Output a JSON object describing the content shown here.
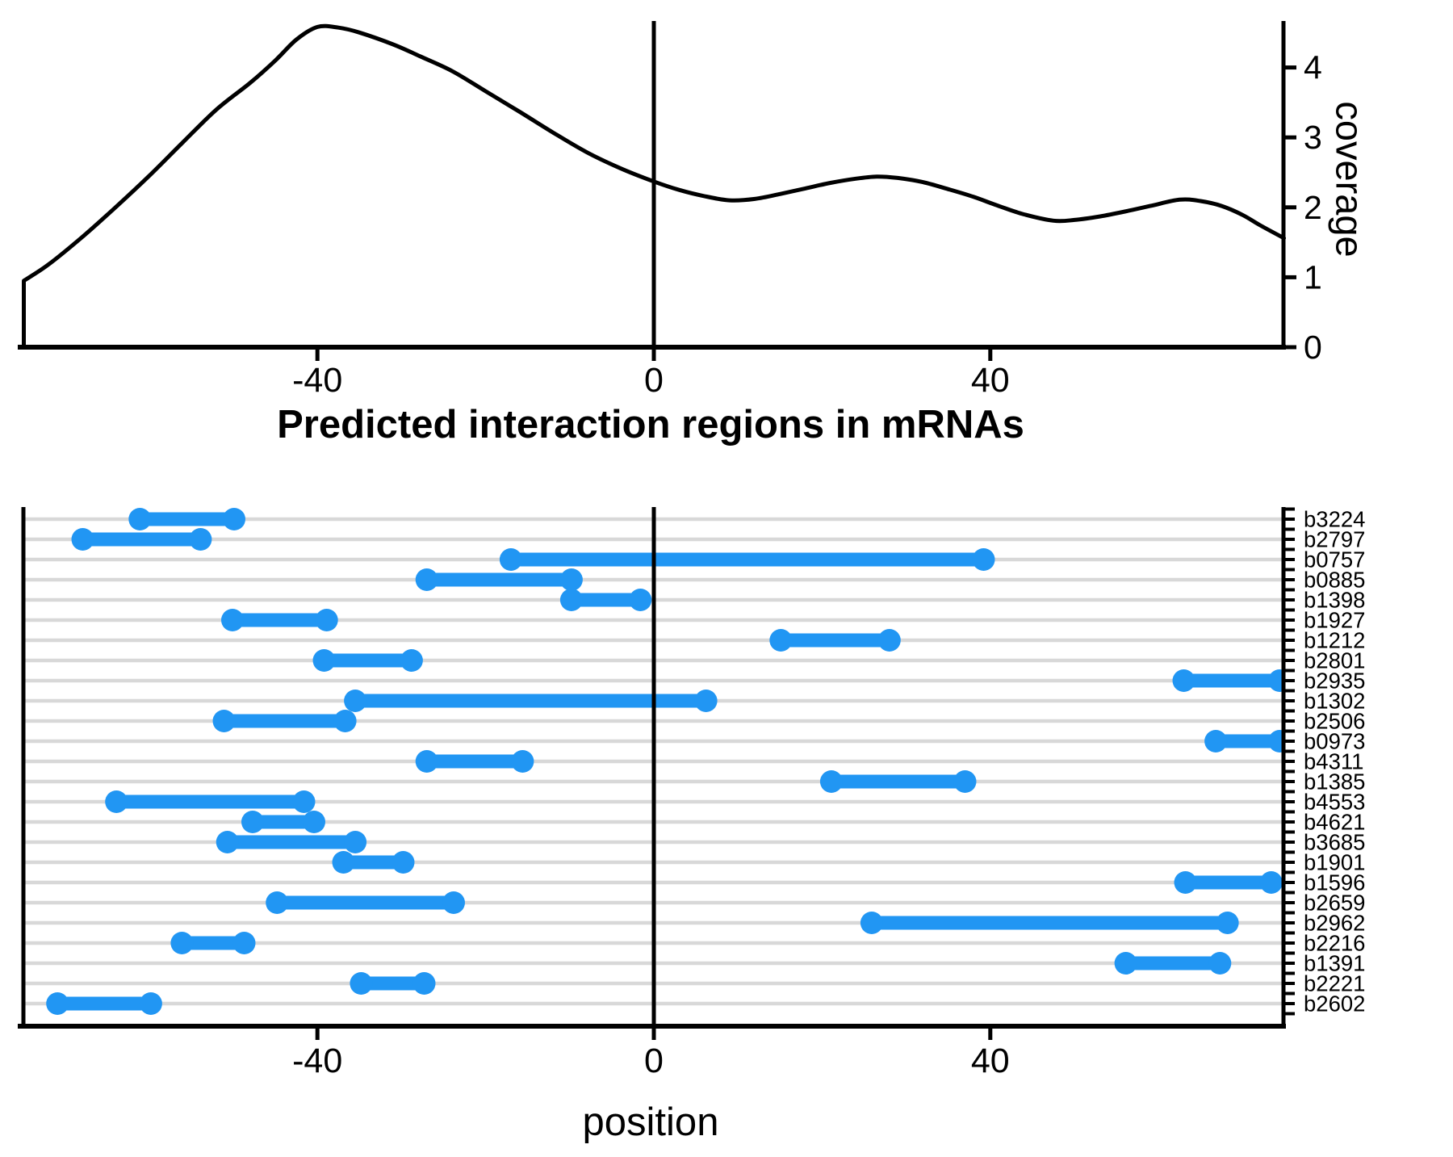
{
  "title": "Predicted interaction regions in mRNAs",
  "top_panel": {
    "ylabel": "coverage"
  },
  "bottom_panel": {
    "xlabel": "position"
  },
  "colors": {
    "segment": "#2196F3",
    "gridline": "#D8D8D8",
    "axis": "#000000",
    "background": "#FFFFFF"
  },
  "chart_data": [
    {
      "type": "area",
      "title": "",
      "xlabel": "",
      "ylabel": "coverage",
      "x_range": [
        -75,
        75
      ],
      "y_range": [
        0,
        4.67
      ],
      "x_ticks": [
        -40,
        0,
        40
      ],
      "y_ticks": [
        0,
        1,
        2,
        3,
        4
      ],
      "vline_x": 0,
      "grid": false,
      "legend": "none",
      "series": [
        {
          "name": "coverage",
          "points": [
            [
              -74.9,
              0.95
            ],
            [
              -72,
              1.18
            ],
            [
              -68,
              1.57
            ],
            [
              -64,
              2.0
            ],
            [
              -60,
              2.45
            ],
            [
              -56,
              2.93
            ],
            [
              -52,
              3.4
            ],
            [
              -48,
              3.78
            ],
            [
              -45,
              4.1
            ],
            [
              -42.5,
              4.4
            ],
            [
              -40,
              4.58
            ],
            [
              -37.5,
              4.57
            ],
            [
              -35,
              4.5
            ],
            [
              -31,
              4.33
            ],
            [
              -27.8,
              4.16
            ],
            [
              -24,
              3.95
            ],
            [
              -20,
              3.66
            ],
            [
              -16,
              3.37
            ],
            [
              -12,
              3.07
            ],
            [
              -8,
              2.79
            ],
            [
              -4,
              2.56
            ],
            [
              0,
              2.37
            ],
            [
              3,
              2.25
            ],
            [
              6,
              2.16
            ],
            [
              9,
              2.1
            ],
            [
              12,
              2.12
            ],
            [
              15,
              2.19
            ],
            [
              18,
              2.27
            ],
            [
              21,
              2.35
            ],
            [
              24,
              2.41
            ],
            [
              26.5,
              2.44
            ],
            [
              29,
              2.42
            ],
            [
              32,
              2.36
            ],
            [
              35,
              2.26
            ],
            [
              38,
              2.15
            ],
            [
              41,
              2.02
            ],
            [
              44,
              1.9
            ],
            [
              47.5,
              1.81
            ],
            [
              50,
              1.82
            ],
            [
              53,
              1.87
            ],
            [
              56,
              1.94
            ],
            [
              59,
              2.02
            ],
            [
              62.5,
              2.11
            ],
            [
              65,
              2.09
            ],
            [
              67.5,
              2.02
            ],
            [
              70,
              1.89
            ],
            [
              72,
              1.75
            ],
            [
              74.9,
              1.56
            ]
          ]
        }
      ]
    },
    {
      "type": "bar",
      "variant": "horizontal-dumbbell-range",
      "title": "Predicted interaction regions in mRNAs",
      "xlabel": "position",
      "ylabel": "",
      "x_range": [
        -75,
        75
      ],
      "x_ticks": [
        -40,
        0,
        40
      ],
      "vline_x": 0,
      "grid": "horizontal",
      "legend": "none",
      "categories": [
        "b3224",
        "b2797",
        "b0757",
        "b0885",
        "b1398",
        "b1927",
        "b1212",
        "b2801",
        "b2935",
        "b1302",
        "b2506",
        "b0973",
        "b4311",
        "b1385",
        "b4553",
        "b4621",
        "b3685",
        "b1901",
        "b1596",
        "b2659",
        "b2962",
        "b2216",
        "b1391",
        "b2221",
        "b2602"
      ],
      "ranges": [
        [
          -61.1,
          -49.9
        ],
        [
          -67.9,
          -53.9
        ],
        [
          -17.0,
          39.2
        ],
        [
          -27.0,
          -9.8
        ],
        [
          -9.8,
          -1.6
        ],
        [
          -50.1,
          -38.9
        ],
        [
          15.1,
          28.0
        ],
        [
          -39.2,
          -28.8
        ],
        [
          63.0,
          74.4
        ],
        [
          -35.5,
          6.2
        ],
        [
          -51.1,
          -36.7
        ],
        [
          66.8,
          74.4
        ],
        [
          -27.0,
          -15.6
        ],
        [
          21.1,
          37.0
        ],
        [
          -63.9,
          -41.6
        ],
        [
          -47.7,
          -40.4
        ],
        [
          -50.7,
          -35.5
        ],
        [
          -36.9,
          -29.8
        ],
        [
          63.2,
          73.4
        ],
        [
          -44.8,
          -23.8
        ],
        [
          25.9,
          68.2
        ],
        [
          -56.1,
          -48.7
        ],
        [
          56.1,
          67.3
        ],
        [
          -34.8,
          -27.3
        ],
        [
          -70.9,
          -59.8
        ]
      ]
    }
  ]
}
